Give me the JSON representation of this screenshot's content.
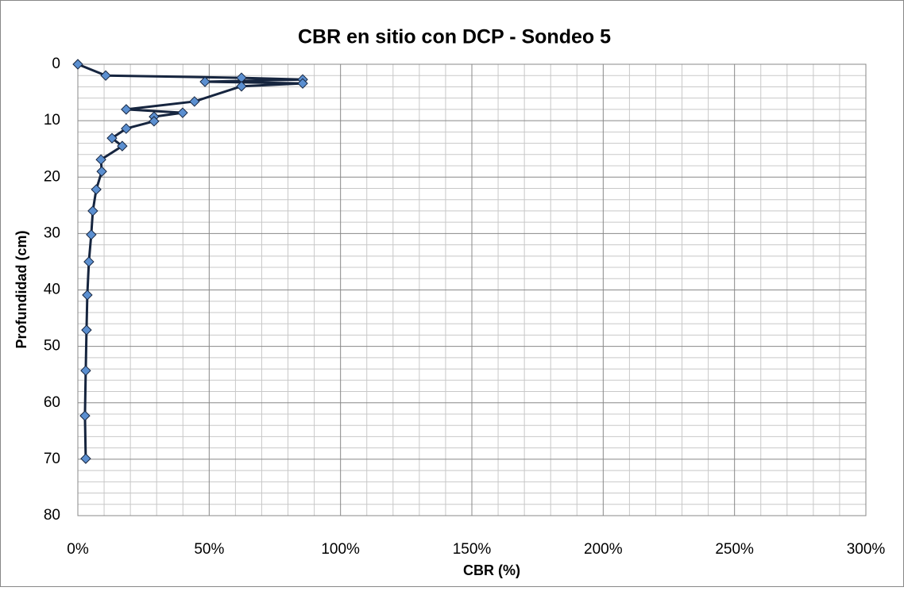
{
  "chart_data": {
    "type": "line",
    "title": "CBR en sitio con DCP - Sondeo 5",
    "x_label": "CBR (%)",
    "y_label": "Profundidad (cm)",
    "xlim": [
      0,
      300
    ],
    "xticks": [
      {
        "value": 0,
        "label": "0%"
      },
      {
        "value": 50,
        "label": "50%"
      },
      {
        "value": 100,
        "label": "100%"
      },
      {
        "value": 150,
        "label": "150%"
      },
      {
        "value": 200,
        "label": "200%"
      },
      {
        "value": 250,
        "label": "250%"
      },
      {
        "value": 300,
        "label": "300%"
      }
    ],
    "ylim": [
      0,
      80
    ],
    "yticks": [
      0,
      10,
      20,
      30,
      40,
      50,
      60,
      70,
      80
    ],
    "y_reversed": true,
    "grid": true,
    "series": [
      {
        "color": "#16253f",
        "marker_color": "#5b8fd0",
        "x": [
          0,
          10.6,
          62.3,
          85.6,
          48.4,
          85.6,
          62.3,
          44.4,
          18.4,
          39.9,
          29.0,
          29.0,
          18.4,
          13.0,
          16.9,
          8.8,
          9.1,
          7.0,
          5.7,
          5.1,
          4.2,
          3.6,
          3.3,
          3.0,
          2.7,
          3.0
        ],
        "values": [
          0,
          2.0,
          2.4,
          2.7,
          3.1,
          3.4,
          3.9,
          6.6,
          8.0,
          8.6,
          9.3,
          10.1,
          11.4,
          13.1,
          14.5,
          16.9,
          19.0,
          22.2,
          26.0,
          30.2,
          35.0,
          40.9,
          47.1,
          54.3,
          62.3,
          69.9
        ]
      }
    ]
  }
}
